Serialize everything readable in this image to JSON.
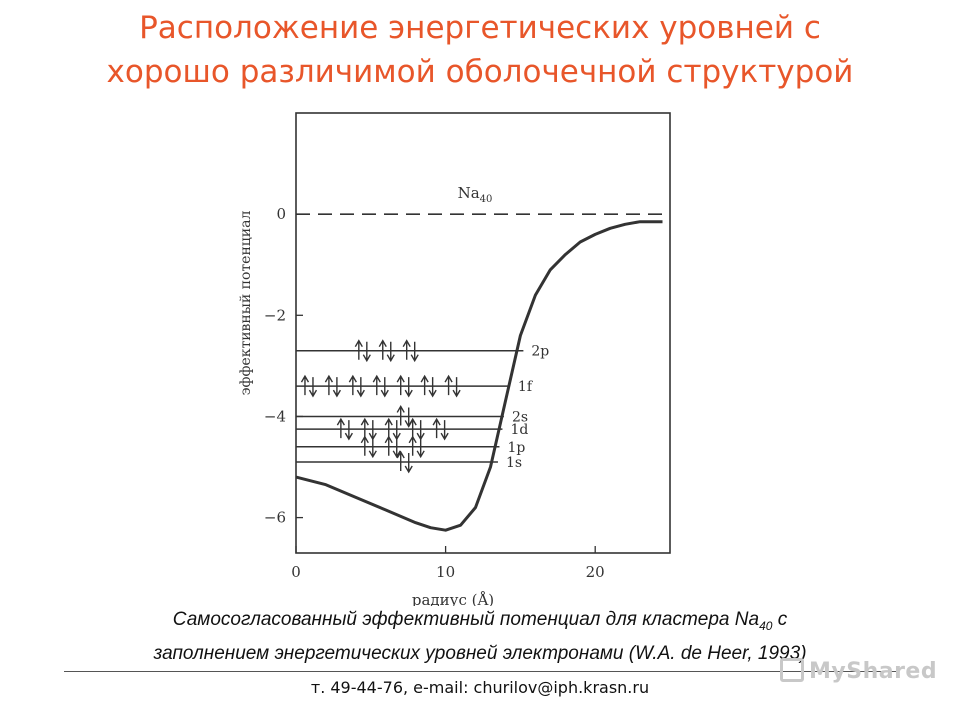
{
  "slide": {
    "title_line1": "Расположение энергетических уровней с",
    "title_line2": "хорошо различимой оболочечной структурой",
    "caption_part1": "Самосогласованный эффективный потенциал для кластера Na",
    "caption_sub": "40",
    "caption_part2": " с",
    "caption_line2": "заполнением энергетических уровней электронами (W.A. de Heer, 1993)",
    "footer": "т. 49-44-76, e-mail: churilov@iph.krasn.ru",
    "watermark": "MyShared",
    "colors": {
      "title": "#e8562a",
      "ink": "#333333"
    }
  },
  "chart_data": {
    "type": "line",
    "ylabel": "эффективный потенциал",
    "xlabel": "радиус (Å)",
    "xlim": [
      0,
      25
    ],
    "ylim": [
      -6.7,
      2.0
    ],
    "x_ticks": [
      0,
      10,
      20
    ],
    "x_tick_labels": [
      "0",
      "10",
      "20"
    ],
    "y_ticks": [
      0,
      -2,
      -4,
      -6
    ],
    "y_tick_labels": [
      "0",
      "−2",
      "−4",
      "−6"
    ],
    "grid": false,
    "zero_line_label_main": "Na",
    "zero_line_label_sub": "40",
    "series": [
      {
        "x": [
          0,
          2,
          4,
          6,
          8,
          9,
          10,
          11,
          12,
          13,
          14,
          15,
          16,
          17,
          18,
          19,
          20,
          21,
          22,
          23,
          24.5
        ],
        "y": [
          -5.2,
          -5.35,
          -5.6,
          -5.85,
          -6.1,
          -6.2,
          -6.25,
          -6.15,
          -5.8,
          -5.0,
          -3.7,
          -2.4,
          -1.6,
          -1.1,
          -0.8,
          -0.55,
          -0.4,
          -0.28,
          -0.2,
          -0.15,
          -0.15
        ]
      }
    ],
    "levels": [
      {
        "label": "2p",
        "energy": -2.7,
        "x_end": 15.2,
        "arrow_pairs": 3,
        "arrow_x_start": 4.4
      },
      {
        "label": "1f",
        "energy": -3.4,
        "x_end": 14.3,
        "arrow_pairs": 7,
        "arrow_x_start": 0.8
      },
      {
        "label": "2s",
        "energy": -4.0,
        "x_end": 13.9,
        "arrow_pairs": 1,
        "arrow_x_start": 7.2
      },
      {
        "label": "1d",
        "energy": -4.25,
        "x_end": 13.8,
        "arrow_pairs": 5,
        "arrow_x_start": 3.2
      },
      {
        "label": "1p",
        "energy": -4.6,
        "x_end": 13.6,
        "arrow_pairs": 3,
        "arrow_x_start": 4.8
      },
      {
        "label": "1s",
        "energy": -4.9,
        "x_end": 13.5,
        "arrow_pairs": 1,
        "arrow_x_start": 7.2
      }
    ]
  }
}
